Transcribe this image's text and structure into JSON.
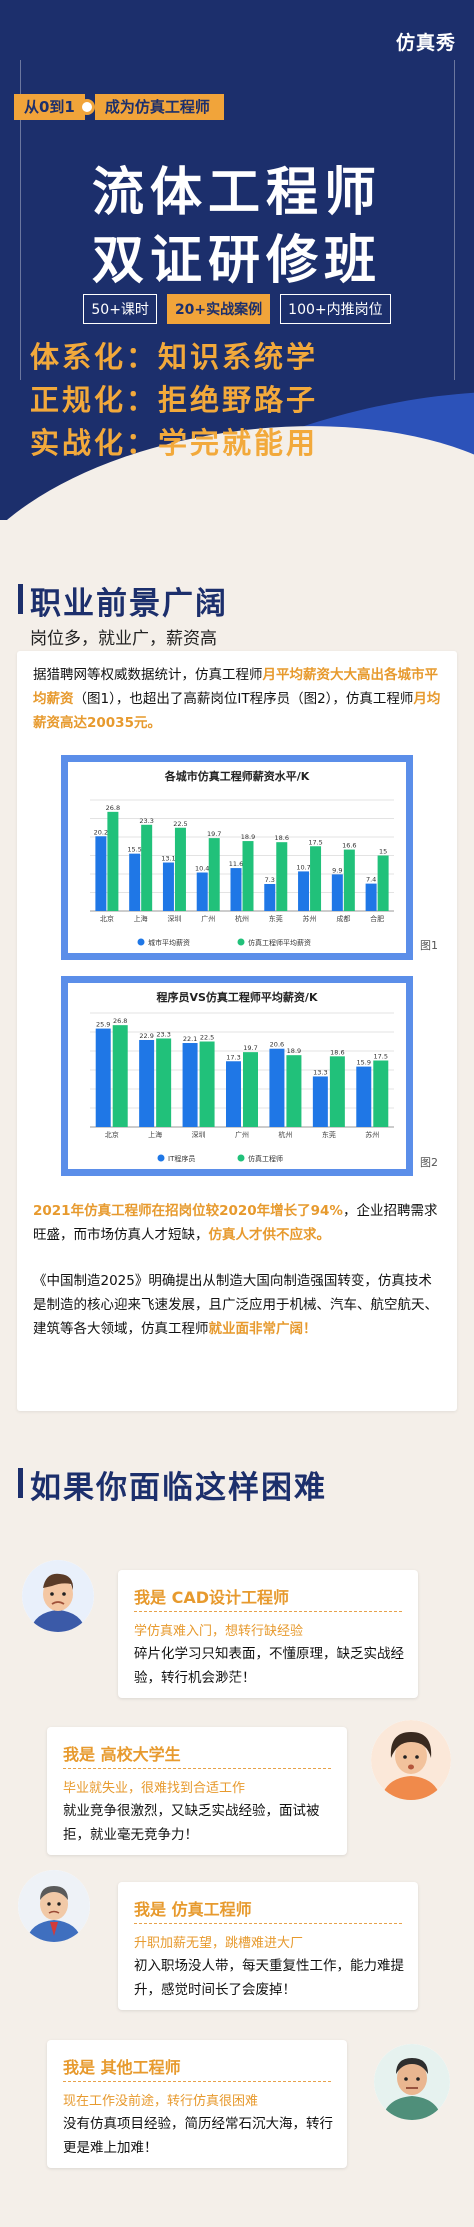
{
  "hero": {
    "brand": "仿真秀",
    "tag_start": "从0到1",
    "tag_goal": "成为仿真工程师",
    "title_line1": "流体工程师",
    "title_line2": "双证研修班",
    "badges": [
      "50+课时",
      "20+实战案例",
      "100+内推岗位"
    ],
    "slogans": [
      "体系化：知识系统学",
      "正规化：拒绝野路子",
      "实战化：学完就能用"
    ]
  },
  "career": {
    "heading": "职业前景广阔",
    "subheading": "岗位多，就业广，薪资高",
    "intro": {
      "p1": "据猎聘网等权威数据统计，仿真工程师",
      "hl1": "月平均薪资大大高出各城市平均薪资",
      "p2": "（图1），也超出了高薪岗位IT程序员（图2），仿真工程师",
      "hl2": "月均薪资高达20035元。"
    },
    "fig1_label": "图1",
    "fig2_label": "图2",
    "growth": {
      "hl1": "2021年仿真工程师在招岗位较2020年增长了94%",
      "p1": "，企业招聘需求旺盛，而市场仿真人才短缺，",
      "hl2": "仿真人才供不应求。"
    },
    "policy": {
      "p1": "《中国制造2025》明确提出从制造大国向制造强国转变，仿真技术是制造的核心迎来飞速发展，且广泛应用于机械、汽车、航空航天、建筑等各大领域，仿真工程师",
      "hl1": "就业面非常广阔！"
    }
  },
  "chart_data": [
    {
      "type": "bar",
      "title": "各城市仿真工程师薪资水平/K",
      "categories": [
        "北京",
        "上海",
        "深圳",
        "广州",
        "杭州",
        "东莞",
        "苏州",
        "成都",
        "合肥"
      ],
      "series": [
        {
          "name": "城市平均薪资",
          "values": [
            20.2,
            15.5,
            13.1,
            10.4,
            11.6,
            7.3,
            10.7,
            9.9,
            7.4
          ]
        },
        {
          "name": "仿真工程师平均薪资",
          "values": [
            26.8,
            23.3,
            22.5,
            19.7,
            18.9,
            18.6,
            17.5,
            16.6,
            15
          ]
        }
      ],
      "ylim": [
        0,
        30
      ],
      "colors": [
        "#1f77e6",
        "#21c17a"
      ],
      "legend": "bottom",
      "grid": true
    },
    {
      "type": "bar",
      "title": "程序员VS仿真工程师平均薪资/K",
      "categories": [
        "北京",
        "上海",
        "深圳",
        "广州",
        "杭州",
        "东莞",
        "苏州"
      ],
      "series": [
        {
          "name": "IT程序员",
          "values": [
            25.9,
            22.9,
            22.1,
            17.3,
            20.6,
            13.3,
            15.9
          ]
        },
        {
          "name": "仿真工程师",
          "values": [
            26.8,
            23.3,
            22.5,
            19.7,
            18.9,
            18.6,
            17.5
          ]
        }
      ],
      "ylim": [
        0,
        30
      ],
      "colors": [
        "#1f77e6",
        "#21c17a"
      ],
      "legend": "bottom",
      "grid": true
    }
  ],
  "problems": {
    "heading": "如果你面临这样困难",
    "items": [
      {
        "prefix": "我是 ",
        "role": "CAD设计工程师",
        "pain": "学仿真难入门，想转行缺经验",
        "desc": "碎片化学习只知表面，不懂原理，缺乏实战经验，转行机会渺茫！"
      },
      {
        "prefix": "我是 ",
        "role": "高校大学生",
        "pain": "毕业就失业，很难找到合适工作",
        "desc": "就业竞争很激烈，又缺乏实战经验，面试被拒，就业毫无竞争力！"
      },
      {
        "prefix": "我是 ",
        "role": "仿真工程师",
        "pain": "升职加薪无望，跳槽难进大厂",
        "desc": "初入职场没人带，每天重复性工作，能力难提升，感觉时间长了会废掉！"
      },
      {
        "prefix": "我是 ",
        "role": "其他工程师",
        "pain": "现在工作没前途，转行仿真很困难",
        "desc": "没有仿真项目经验，简历经常石沉大海，转行更是难上加难！"
      }
    ]
  }
}
